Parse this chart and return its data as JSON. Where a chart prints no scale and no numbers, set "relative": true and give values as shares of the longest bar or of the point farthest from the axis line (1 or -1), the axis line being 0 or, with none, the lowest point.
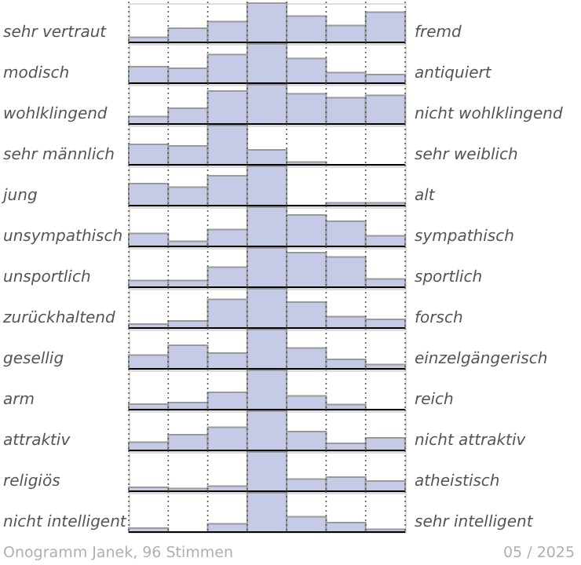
{
  "chart_data": [
    {
      "type": "bar",
      "relative": true,
      "grid": "x",
      "color": "#c5cbe6",
      "categories": [
        null,
        null,
        null,
        null,
        null,
        null,
        null
      ],
      "ylabel": "sehr vertraut",
      "y2label": "fremd",
      "values": [
        0.13,
        0.36,
        0.53,
        1,
        0.67,
        0.43,
        0.77
      ]
    },
    {
      "type": "bar",
      "relative": true,
      "grid": "x",
      "color": "#c5cbe6",
      "categories": [
        null,
        null,
        null,
        null,
        null,
        null,
        null
      ],
      "ylabel": "modisch",
      "y2label": "antiquiert",
      "values": [
        0.42,
        0.38,
        0.73,
        1,
        0.63,
        0.27,
        0.22
      ]
    },
    {
      "type": "bar",
      "relative": true,
      "grid": "x",
      "color": "#c5cbe6",
      "categories": [
        null,
        null,
        null,
        null,
        null,
        null,
        null
      ],
      "ylabel": "wohlklingend",
      "y2label": "nicht wohlklingend",
      "values": [
        0.19,
        0.4,
        0.84,
        1,
        0.77,
        0.67,
        0.73
      ]
    },
    {
      "type": "bar",
      "relative": true,
      "grid": "x",
      "color": "#c5cbe6",
      "categories": [
        null,
        null,
        null,
        null,
        null,
        null,
        null
      ],
      "ylabel": "sehr männlich",
      "y2label": "sehr weiblich",
      "values": [
        0.52,
        0.48,
        1,
        0.38,
        0.07,
        0,
        0
      ]
    },
    {
      "type": "bar",
      "relative": true,
      "grid": "x",
      "color": "#c5cbe6",
      "categories": [
        null,
        null,
        null,
        null,
        null,
        null,
        null
      ],
      "ylabel": "jung",
      "y2label": "alt",
      "values": [
        0.56,
        0.47,
        0.76,
        1,
        0,
        0.07,
        0.07
      ]
    },
    {
      "type": "bar",
      "relative": true,
      "grid": "x",
      "color": "#c5cbe6",
      "categories": [
        null,
        null,
        null,
        null,
        null,
        null,
        null
      ],
      "ylabel": "unsympathisch",
      "y2label": "sympathisch",
      "values": [
        0.33,
        0.13,
        0.43,
        1,
        0.8,
        0.64,
        0.27
      ]
    },
    {
      "type": "bar",
      "relative": true,
      "grid": "x",
      "color": "#c5cbe6",
      "categories": [
        null,
        null,
        null,
        null,
        null,
        null,
        null
      ],
      "ylabel": "unsportlich",
      "y2label": "sportlich",
      "values": [
        0.17,
        0.17,
        0.51,
        1,
        0.88,
        0.77,
        0.21
      ]
    },
    {
      "type": "bar",
      "relative": true,
      "grid": "x",
      "color": "#c5cbe6",
      "categories": [
        null,
        null,
        null,
        null,
        null,
        null,
        null
      ],
      "ylabel": "zurückhaltend",
      "y2label": "forsch",
      "values": [
        0.1,
        0.18,
        0.73,
        1,
        0.66,
        0.29,
        0.22
      ]
    },
    {
      "type": "bar",
      "relative": true,
      "grid": "x",
      "color": "#c5cbe6",
      "categories": [
        null,
        null,
        null,
        null,
        null,
        null,
        null
      ],
      "ylabel": "gesellig",
      "y2label": "einzelgängerisch",
      "values": [
        0.35,
        0.6,
        0.4,
        1,
        0.53,
        0.24,
        0.11
      ]
    },
    {
      "type": "bar",
      "relative": true,
      "grid": "x",
      "color": "#c5cbe6",
      "categories": [
        null,
        null,
        null,
        null,
        null,
        null,
        null
      ],
      "ylabel": "arm",
      "y2label": "reich",
      "values": [
        0.14,
        0.18,
        0.44,
        1,
        0.35,
        0.13,
        0
      ]
    },
    {
      "type": "bar",
      "relative": true,
      "grid": "x",
      "color": "#c5cbe6",
      "categories": [
        null,
        null,
        null,
        null,
        null,
        null,
        null
      ],
      "ylabel": "attraktiv",
      "y2label": "nicht attraktiv",
      "values": [
        0.21,
        0.4,
        0.59,
        1,
        0.48,
        0.18,
        0.32
      ]
    },
    {
      "type": "bar",
      "relative": true,
      "grid": "x",
      "color": "#c5cbe6",
      "categories": [
        null,
        null,
        null,
        null,
        null,
        null,
        null
      ],
      "ylabel": "religiös",
      "y2label": "atheistisch",
      "values": [
        0.1,
        0.07,
        0.13,
        1,
        0.31,
        0.36,
        0.26
      ]
    },
    {
      "type": "bar",
      "relative": true,
      "grid": "x",
      "color": "#c5cbe6",
      "categories": [
        null,
        null,
        null,
        null,
        null,
        null,
        null
      ],
      "ylabel": "nicht intelligent",
      "y2label": "sehr intelligent",
      "values": [
        0.1,
        0,
        0.21,
        1,
        0.39,
        0.24,
        0.07
      ],
      "annotations": [
        "Onogramm Janek, 96 Stimmen",
        "05 / 2025"
      ]
    }
  ]
}
